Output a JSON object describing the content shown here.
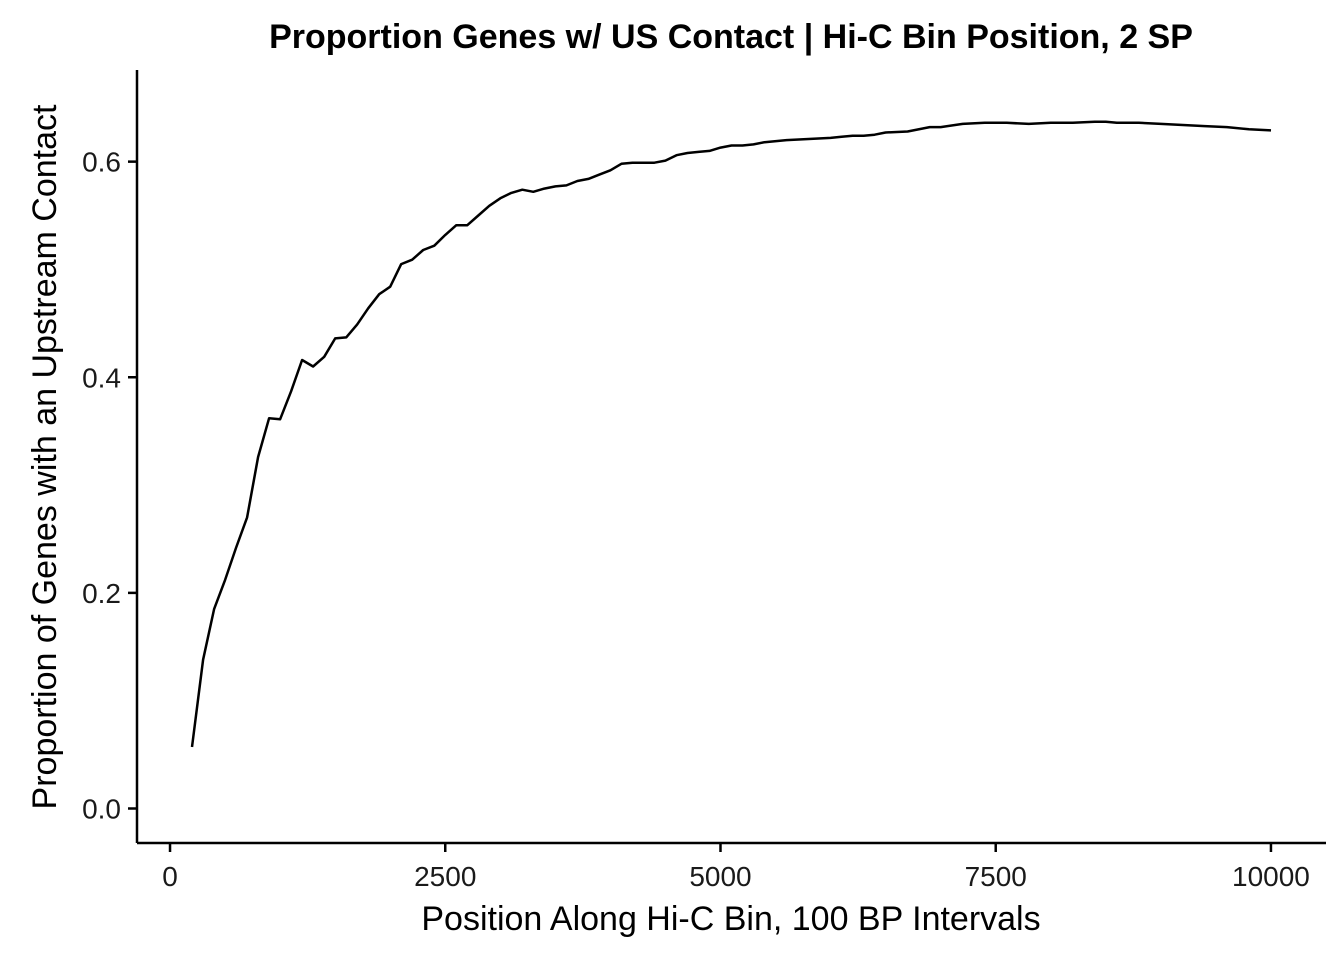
{
  "chart_data": {
    "type": "line",
    "title": "Proportion Genes w/ US Contact | Hi-C Bin Position, 2 SP",
    "xlabel": "Position Along Hi-C Bin, 100 BP Intervals",
    "ylabel": "Proportion of Genes with an Upstream Contact",
    "xlim": [
      -300,
      10500
    ],
    "ylim": [
      -0.032,
      0.685
    ],
    "xticks": [
      0,
      2500,
      5000,
      7500,
      10000
    ],
    "xtick_labels": [
      "0",
      "2500",
      "5000",
      "7500",
      "10000"
    ],
    "yticks": [
      0.0,
      0.2,
      0.4,
      0.6
    ],
    "ytick_labels": [
      "0.0",
      "0.2",
      "0.4",
      "0.6"
    ],
    "grid": false,
    "series": [
      {
        "color": "#000000",
        "x": [
          200,
          300,
          400,
          500,
          600,
          700,
          800,
          900,
          1000,
          1100,
          1200,
          1300,
          1400,
          1500,
          1600,
          1700,
          1800,
          1900,
          2000,
          2100,
          2200,
          2300,
          2400,
          2500,
          2600,
          2700,
          2800,
          2900,
          3000,
          3100,
          3200,
          3300,
          3400,
          3500,
          3600,
          3700,
          3800,
          3900,
          4000,
          4100,
          4200,
          4300,
          4400,
          4500,
          4600,
          4700,
          4800,
          4900,
          5000,
          5100,
          5200,
          5300,
          5400,
          5600,
          5800,
          6000,
          6100,
          6200,
          6300,
          6400,
          6500,
          6700,
          6900,
          7000,
          7200,
          7400,
          7600,
          7800,
          8000,
          8200,
          8400,
          8500,
          8600,
          8800,
          9000,
          9200,
          9400,
          9600,
          9800,
          10000
        ],
        "y": [
          0.057,
          0.138,
          0.185,
          0.212,
          0.242,
          0.27,
          0.326,
          0.362,
          0.361,
          0.387,
          0.416,
          0.41,
          0.419,
          0.436,
          0.437,
          0.449,
          0.464,
          0.477,
          0.484,
          0.505,
          0.509,
          0.518,
          0.522,
          0.532,
          0.541,
          0.541,
          0.55,
          0.559,
          0.566,
          0.571,
          0.574,
          0.572,
          0.575,
          0.577,
          0.578,
          0.582,
          0.584,
          0.588,
          0.592,
          0.598,
          0.599,
          0.599,
          0.599,
          0.601,
          0.606,
          0.608,
          0.609,
          0.61,
          0.613,
          0.615,
          0.615,
          0.616,
          0.618,
          0.62,
          0.621,
          0.622,
          0.623,
          0.624,
          0.624,
          0.625,
          0.627,
          0.628,
          0.632,
          0.632,
          0.635,
          0.636,
          0.636,
          0.635,
          0.636,
          0.636,
          0.637,
          0.637,
          0.636,
          0.636,
          0.635,
          0.634,
          0.633,
          0.632,
          0.63,
          0.629
        ]
      }
    ]
  }
}
